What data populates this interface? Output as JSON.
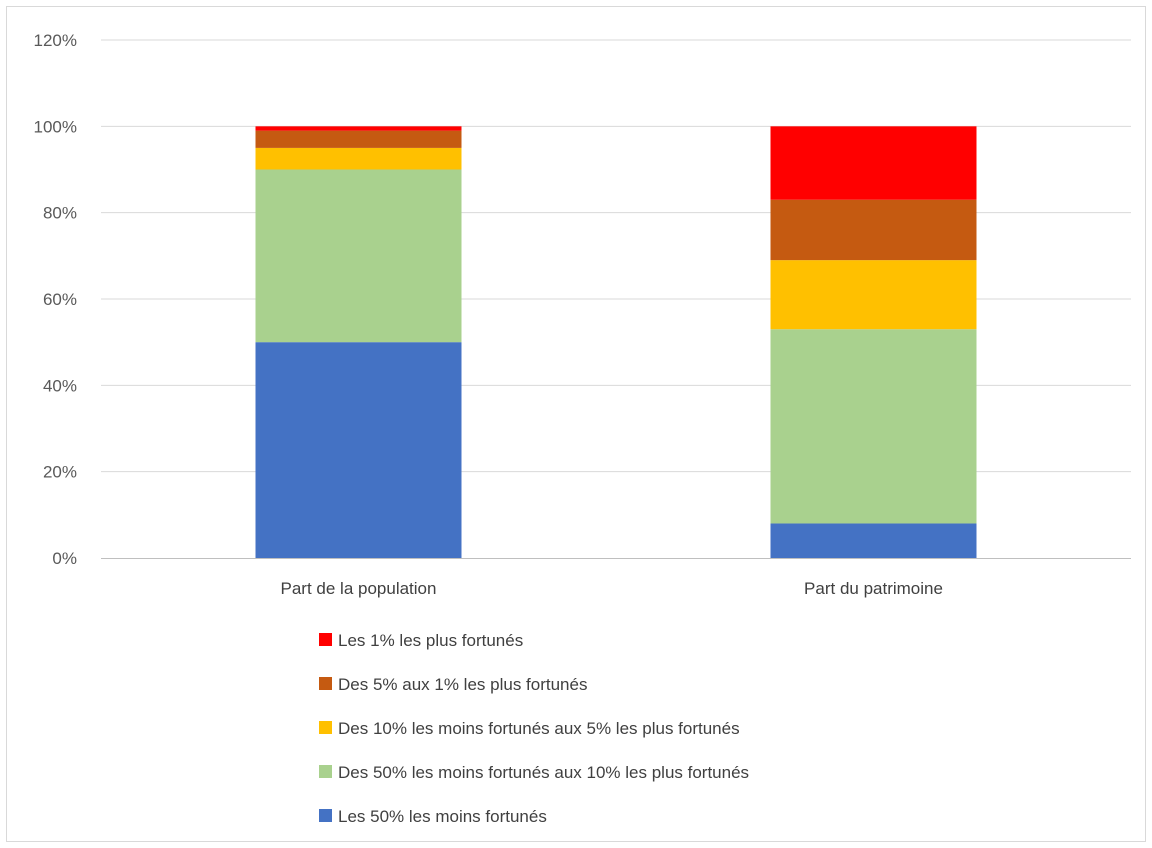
{
  "chart_data": {
    "type": "bar",
    "stacked": true,
    "categories": [
      "Part de la population",
      "Part du patrimoine"
    ],
    "series": [
      {
        "name": "Les 50% les moins fortunés",
        "values": [
          50,
          8
        ],
        "color": "#4472c4"
      },
      {
        "name": "Des 50% les moins fortunés aux 10% les plus fortunés",
        "values": [
          40,
          45
        ],
        "color": "#a9d18e"
      },
      {
        "name": "Des 10% les moins fortunés aux 5% les plus fortunés",
        "values": [
          5,
          16
        ],
        "color": "#ffc000"
      },
      {
        "name": "Des 5% aux 1% les plus fortunés",
        "values": [
          4,
          14
        ],
        "color": "#c55a11"
      },
      {
        "name": "Les 1% les plus fortunés",
        "values": [
          1,
          17
        ],
        "color": "#ff0000"
      }
    ],
    "yticks": [
      "0%",
      "20%",
      "40%",
      "60%",
      "80%",
      "100%",
      "120%"
    ],
    "ylim": [
      0,
      120
    ],
    "grid": true,
    "legend_position": "bottom",
    "legend_order": [
      4,
      3,
      2,
      1,
      0
    ],
    "colors": {
      "grid": "#d9d9d9",
      "axis": "#bfbfbf"
    }
  }
}
